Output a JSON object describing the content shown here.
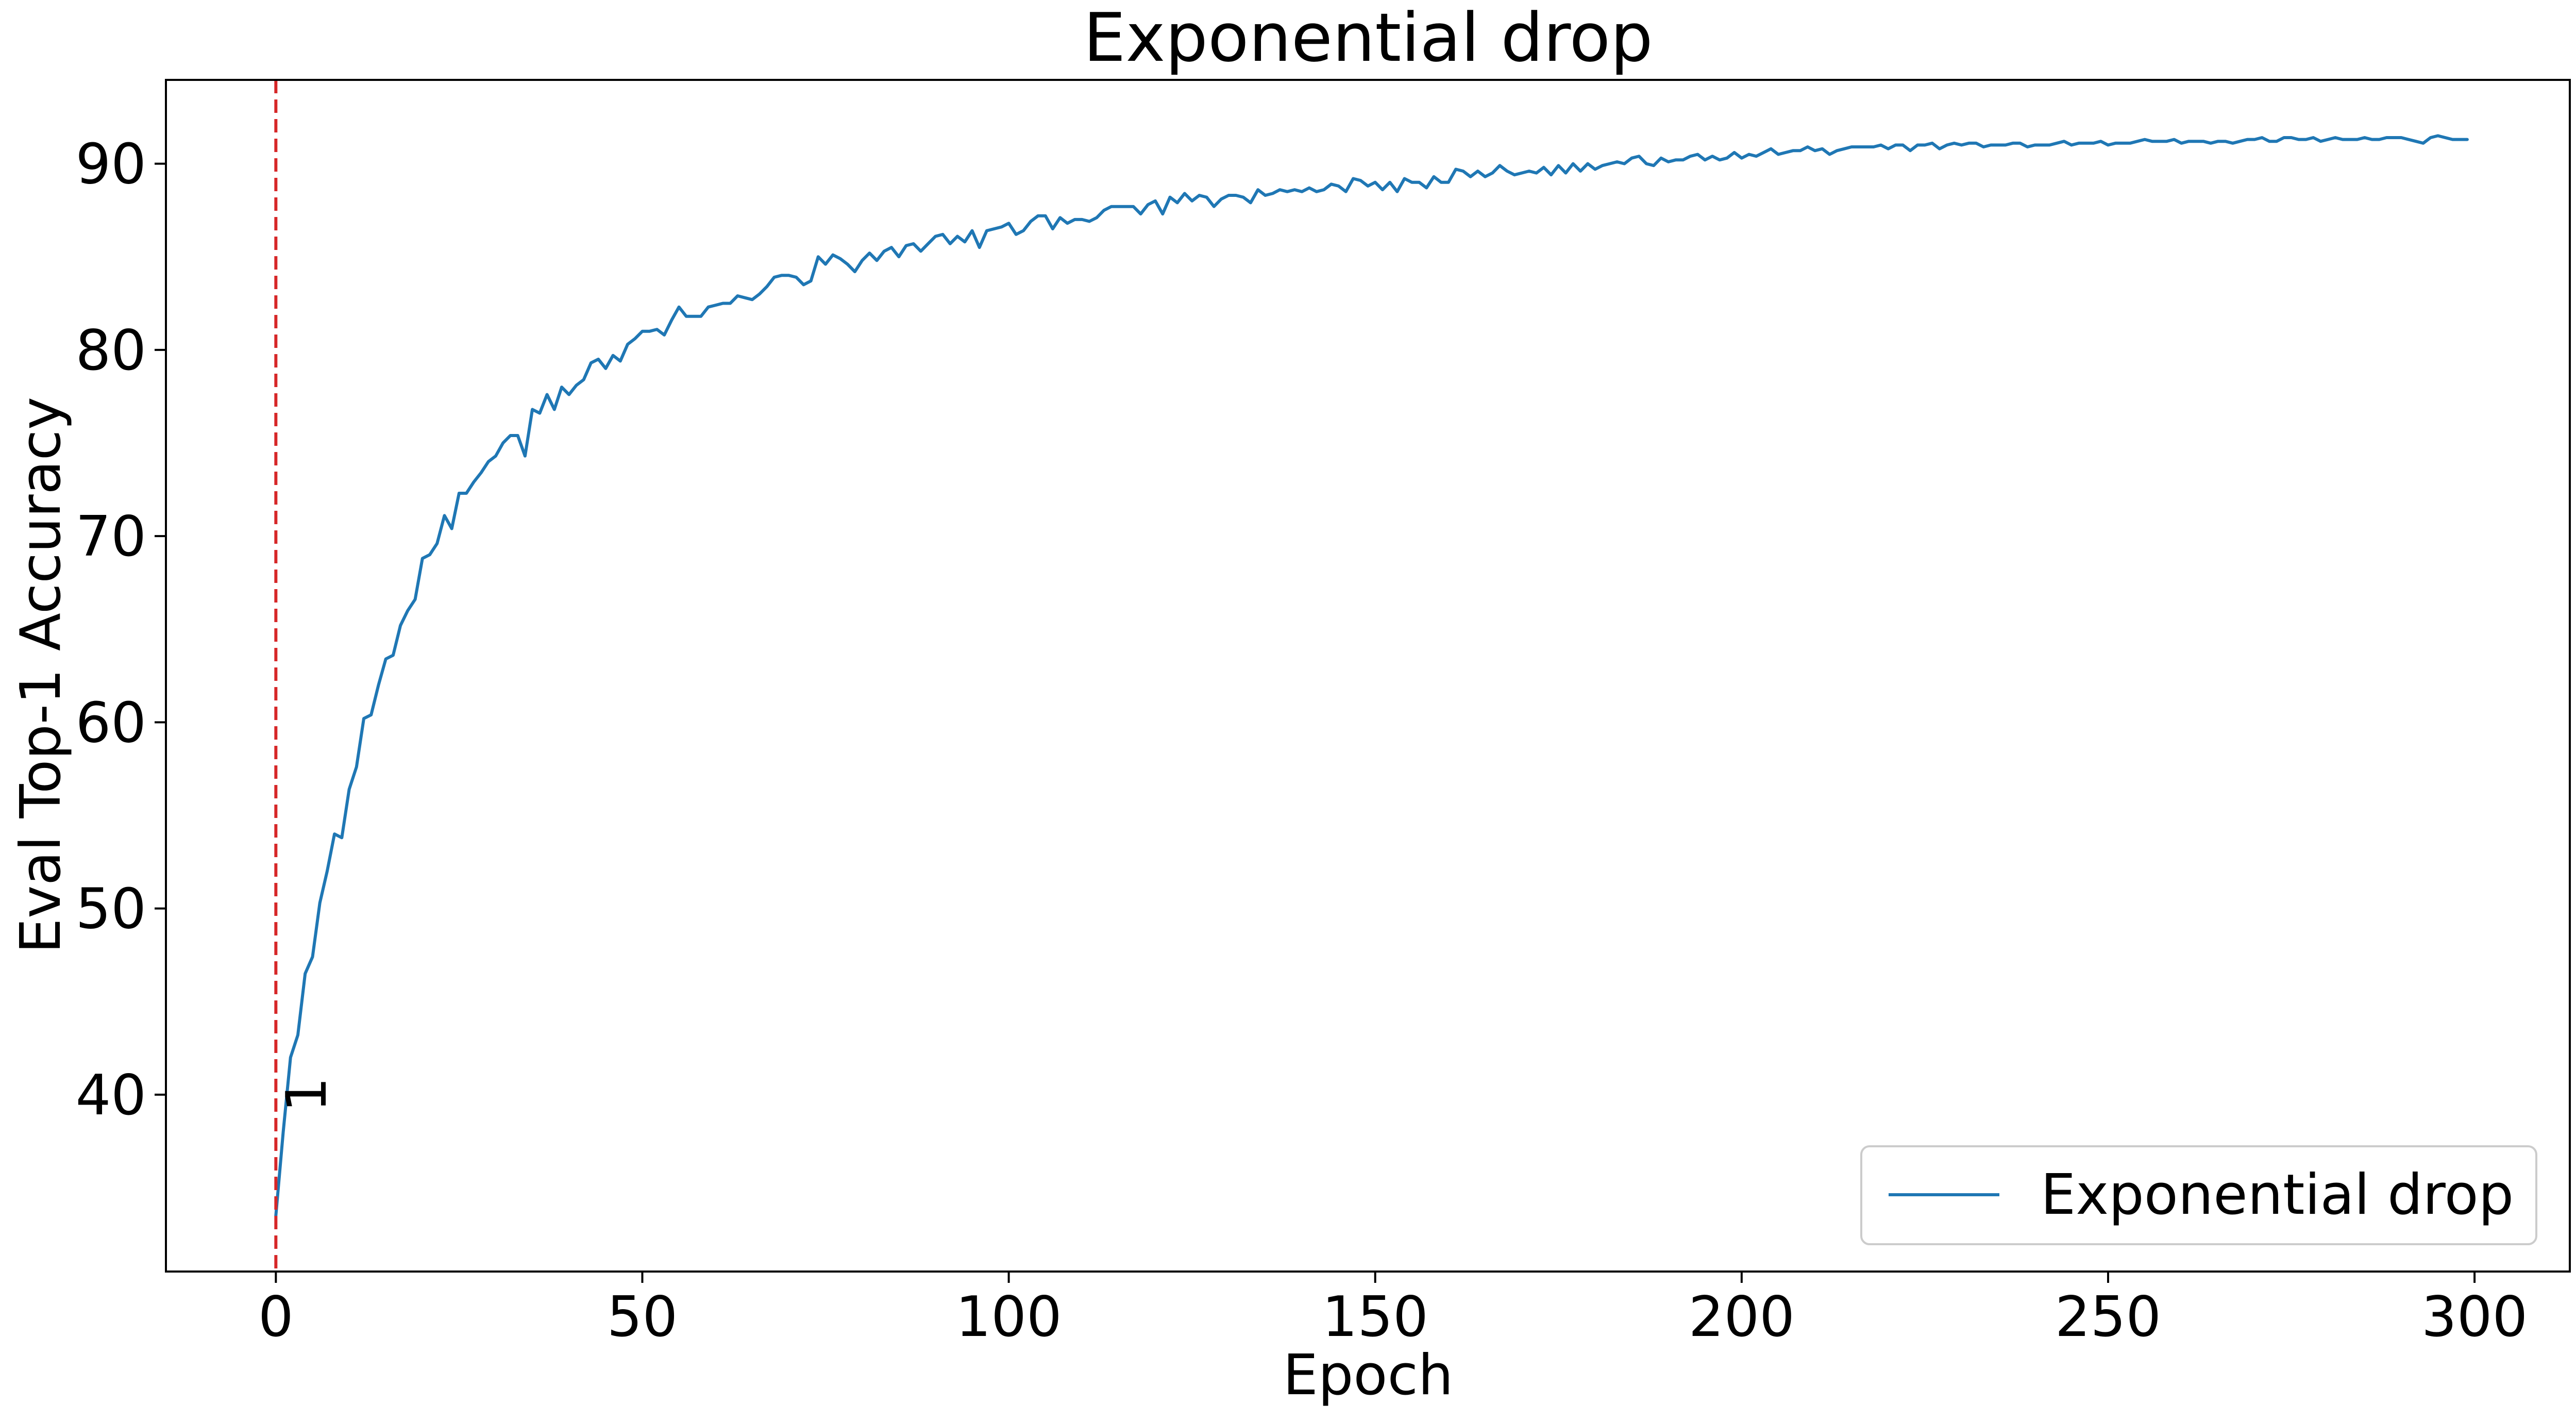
{
  "chart_data": {
    "type": "line",
    "title": "Exponential drop",
    "xlabel": "Epoch",
    "ylabel": "Eval Top-1 Accuracy",
    "xlim": [
      -15,
      313
    ],
    "ylim": [
      30.5,
      94.5
    ],
    "x_ticks": [
      0,
      50,
      100,
      150,
      200,
      250,
      300
    ],
    "y_ticks": [
      40,
      50,
      60,
      70,
      80,
      90
    ],
    "grid": false,
    "legend": {
      "placement": "bottom-right",
      "entries": [
        "Exponential drop"
      ]
    },
    "annotations": [
      {
        "type": "vline",
        "x": 0,
        "color": "#d62728",
        "style": "dashed"
      },
      {
        "type": "text",
        "text": "1",
        "x": 4,
        "y": 40,
        "rotation": -90
      }
    ],
    "series": [
      {
        "name": "Exponential drop",
        "color": "#1f77b4",
        "x_start": 0,
        "x_step": 1,
        "y": [
          33.5,
          38.0,
          42.0,
          43.2,
          46.5,
          47.4,
          50.3,
          52.0,
          54.0,
          53.8,
          56.4,
          57.6,
          60.2,
          60.4,
          62.0,
          63.4,
          63.6,
          65.2,
          66.0,
          66.6,
          68.8,
          69.0,
          69.6,
          71.1,
          70.4,
          72.3,
          72.3,
          72.9,
          73.4,
          74.0,
          74.3,
          75.0,
          75.4,
          75.4,
          74.3,
          76.8,
          76.6,
          77.6,
          76.8,
          78.0,
          77.6,
          78.1,
          78.4,
          79.3,
          79.5,
          79.0,
          79.7,
          79.4,
          80.3,
          80.6,
          81.0,
          81.0,
          81.1,
          80.8,
          81.6,
          82.3,
          81.8,
          81.8,
          81.8,
          82.3,
          82.4,
          82.5,
          82.5,
          82.9,
          82.8,
          82.7,
          83.0,
          83.4,
          83.9,
          84.0,
          84.0,
          83.9,
          83.5,
          83.7,
          85.0,
          84.6,
          85.1,
          84.9,
          84.6,
          84.2,
          84.8,
          85.2,
          84.8,
          85.3,
          85.5,
          85.0,
          85.6,
          85.7,
          85.3,
          85.7,
          86.1,
          86.2,
          85.7,
          86.1,
          85.8,
          86.4,
          85.5,
          86.4,
          86.5,
          86.6,
          86.8,
          86.2,
          86.4,
          86.9,
          87.2,
          87.2,
          86.5,
          87.1,
          86.8,
          87.0,
          87.0,
          86.9,
          87.1,
          87.5,
          87.7,
          87.7,
          87.7,
          87.7,
          87.3,
          87.8,
          88.0,
          87.3,
          88.2,
          87.9,
          88.4,
          88.0,
          88.3,
          88.2,
          87.7,
          88.1,
          88.3,
          88.3,
          88.2,
          87.9,
          88.6,
          88.3,
          88.4,
          88.6,
          88.5,
          88.6,
          88.5,
          88.7,
          88.5,
          88.6,
          88.9,
          88.8,
          88.5,
          89.2,
          89.1,
          88.8,
          89.0,
          88.6,
          89.0,
          88.5,
          89.2,
          89.0,
          89.0,
          88.7,
          89.3,
          89.0,
          89.0,
          89.7,
          89.6,
          89.3,
          89.6,
          89.3,
          89.5,
          89.9,
          89.6,
          89.4,
          89.5,
          89.6,
          89.5,
          89.8,
          89.4,
          89.9,
          89.5,
          90.0,
          89.6,
          90.0,
          89.7,
          89.9,
          90.0,
          90.1,
          90.0,
          90.3,
          90.4,
          90.0,
          89.9,
          90.3,
          90.1,
          90.2,
          90.2,
          90.4,
          90.5,
          90.2,
          90.4,
          90.2,
          90.3,
          90.6,
          90.3,
          90.5,
          90.4,
          90.6,
          90.8,
          90.5,
          90.6,
          90.7,
          90.7,
          90.9,
          90.7,
          90.8,
          90.5,
          90.7,
          90.8,
          90.9,
          90.9,
          90.9,
          90.9,
          91.0,
          90.8,
          91.0,
          91.0,
          90.7,
          91.0,
          91.0,
          91.1,
          90.8,
          91.0,
          91.1,
          91.0,
          91.1,
          91.1,
          90.9,
          91.0,
          91.0,
          91.0,
          91.1,
          91.1,
          90.9,
          91.0,
          91.0,
          91.0,
          91.1,
          91.2,
          91.0,
          91.1,
          91.1,
          91.1,
          91.2,
          91.0,
          91.1,
          91.1,
          91.1,
          91.2,
          91.3,
          91.2,
          91.2,
          91.2,
          91.3,
          91.1,
          91.2,
          91.2,
          91.2,
          91.1,
          91.2,
          91.2,
          91.1,
          91.2,
          91.3,
          91.3,
          91.4,
          91.2,
          91.2,
          91.4,
          91.4,
          91.3,
          91.3,
          91.4,
          91.2,
          91.3,
          91.4,
          91.3,
          91.3,
          91.3,
          91.4,
          91.3,
          91.3,
          91.4,
          91.4,
          91.4,
          91.3,
          91.2,
          91.1,
          91.4,
          91.5,
          91.4,
          91.3,
          91.3,
          91.3
        ]
      }
    ]
  }
}
